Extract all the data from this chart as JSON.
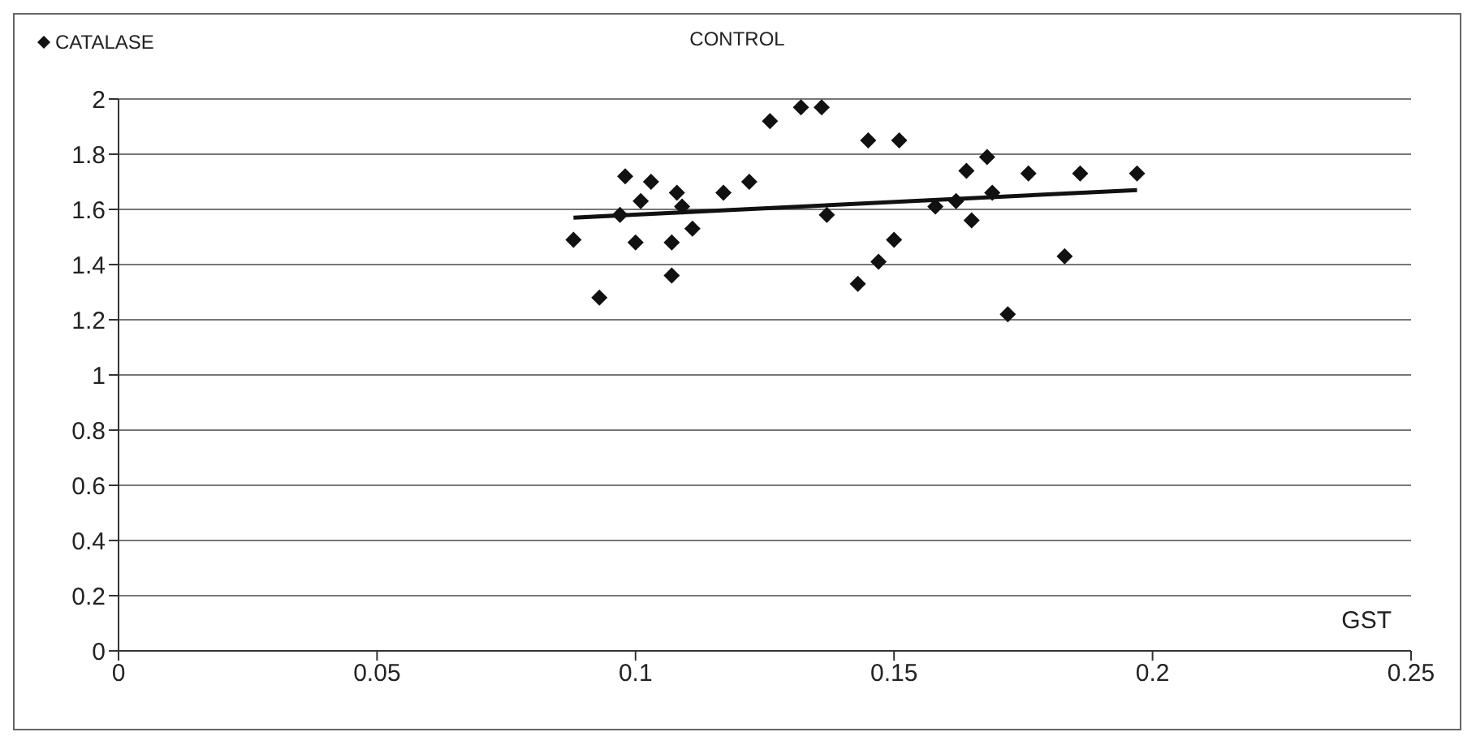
{
  "chart_data": {
    "type": "scatter",
    "title": "CONTROL",
    "xlabel": "GST",
    "legend": "top left",
    "grid": "y",
    "xlim": [
      0,
      0.25
    ],
    "xticks": [
      0,
      0.05,
      0.1,
      0.15,
      0.2,
      0.25
    ],
    "ylim": [
      0,
      2
    ],
    "yticks": [
      0,
      0.2,
      0.4,
      0.6,
      0.8,
      1,
      1.2,
      1.4,
      1.6,
      1.8,
      2
    ],
    "series": [
      {
        "name": "CATALASE",
        "marker": "diamond",
        "color": "#111111",
        "x": [
          0.088,
          0.093,
          0.097,
          0.098,
          0.1,
          0.101,
          0.103,
          0.107,
          0.107,
          0.108,
          0.109,
          0.111,
          0.117,
          0.122,
          0.126,
          0.132,
          0.136,
          0.137,
          0.145,
          0.151,
          0.143,
          0.147,
          0.15,
          0.158,
          0.162,
          0.164,
          0.168,
          0.165,
          0.169,
          0.172,
          0.176,
          0.183,
          0.186,
          0.197
        ],
        "values": [
          1.49,
          1.28,
          1.58,
          1.72,
          1.48,
          1.63,
          1.7,
          1.48,
          1.36,
          1.66,
          1.61,
          1.53,
          1.66,
          1.7,
          1.92,
          1.97,
          1.97,
          1.58,
          1.85,
          1.85,
          1.33,
          1.41,
          1.49,
          1.61,
          1.63,
          1.74,
          1.79,
          1.56,
          1.66,
          1.22,
          1.73,
          1.43,
          1.73,
          1.73
        ]
      },
      {
        "type": "line",
        "marker": "none",
        "color": "#111111",
        "x": [
          0.088,
          0.197
        ],
        "values": [
          1.57,
          1.67
        ]
      }
    ]
  }
}
